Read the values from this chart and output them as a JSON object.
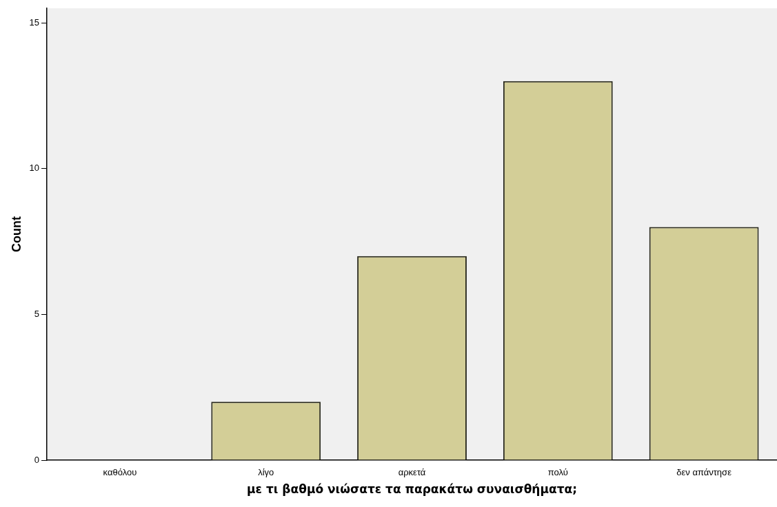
{
  "chart_data": {
    "type": "bar",
    "xlabel": "με τι βαθμό νιώσατε τα παρακάτω συναισθήματα;",
    "ylabel": "Count",
    "categories": [
      "καθόλου",
      "λίγο",
      "αρκετά",
      "πολύ",
      "δεν απάντησε"
    ],
    "values": [
      0,
      2,
      7,
      13,
      8
    ],
    "color": "#d3ce97",
    "ylim": [
      0,
      15.5
    ],
    "yticks": [
      0,
      5,
      10,
      15
    ],
    "grid": false,
    "legend": false
  }
}
